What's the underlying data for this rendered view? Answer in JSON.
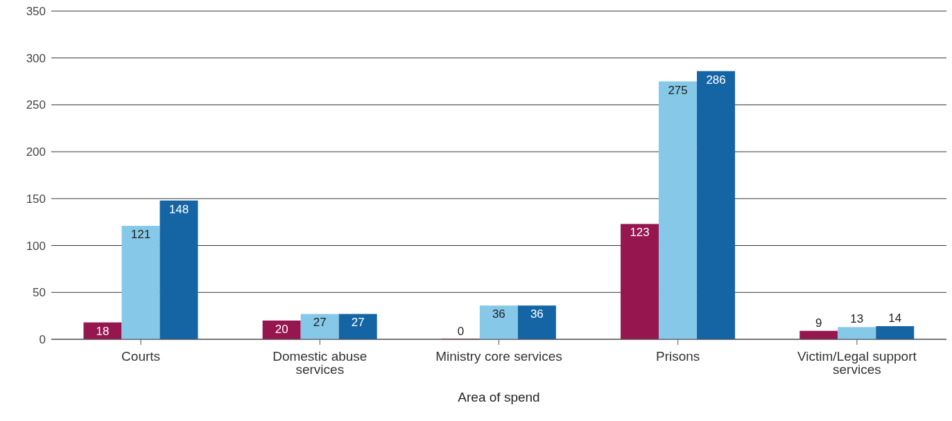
{
  "chart_data": {
    "type": "bar",
    "xlabel": "Area of spend",
    "categories": [
      "Courts",
      "Domestic abuse services",
      "Ministry core services",
      "Prisons",
      "Victim/Legal support services"
    ],
    "series": [
      {
        "color": "#961650",
        "values": [
          18,
          20,
          0,
          123,
          9
        ]
      },
      {
        "color": "#85c8e8",
        "values": [
          121,
          27,
          36,
          275,
          13
        ]
      },
      {
        "color": "#1565a5",
        "values": [
          148,
          27,
          36,
          286,
          14
        ]
      }
    ],
    "ylim": [
      0,
      350
    ],
    "yticks": [
      0,
      50,
      100,
      150,
      200,
      250,
      300,
      350
    ],
    "grid": "y",
    "data_labels": true,
    "legend": false
  }
}
